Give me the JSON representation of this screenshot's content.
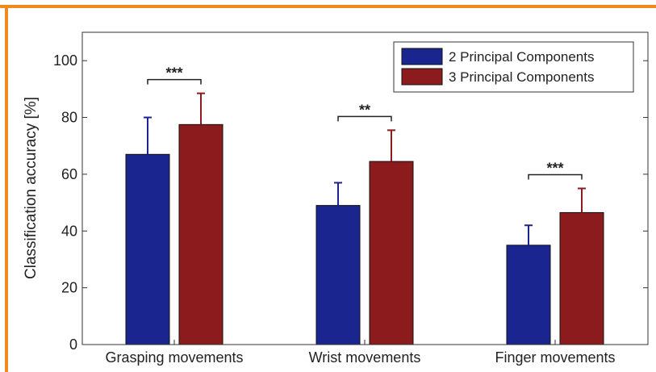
{
  "chart_data": {
    "type": "bar",
    "title": "",
    "xlabel": "",
    "ylabel": "Classification accuracy [%]",
    "ylim": [
      0,
      110
    ],
    "yticks": [
      0,
      20,
      40,
      60,
      80,
      100
    ],
    "categories": [
      "Grasping movements",
      "Wrist movements",
      "Finger movements"
    ],
    "series": [
      {
        "name": "2 Principal Components",
        "color": "#1a2590",
        "values": [
          67,
          49,
          35
        ],
        "error": [
          13,
          8,
          7
        ]
      },
      {
        "name": "3 Principal Components",
        "color": "#8b1b1c",
        "values": [
          77.5,
          64.5,
          46.5
        ],
        "error": [
          11,
          11,
          8.5
        ]
      }
    ],
    "significance": [
      "***",
      "**",
      "***"
    ],
    "legend_position": "top-right",
    "grid": false
  },
  "colors": {
    "frame": "#ee8a1e",
    "axis": "#333333"
  }
}
